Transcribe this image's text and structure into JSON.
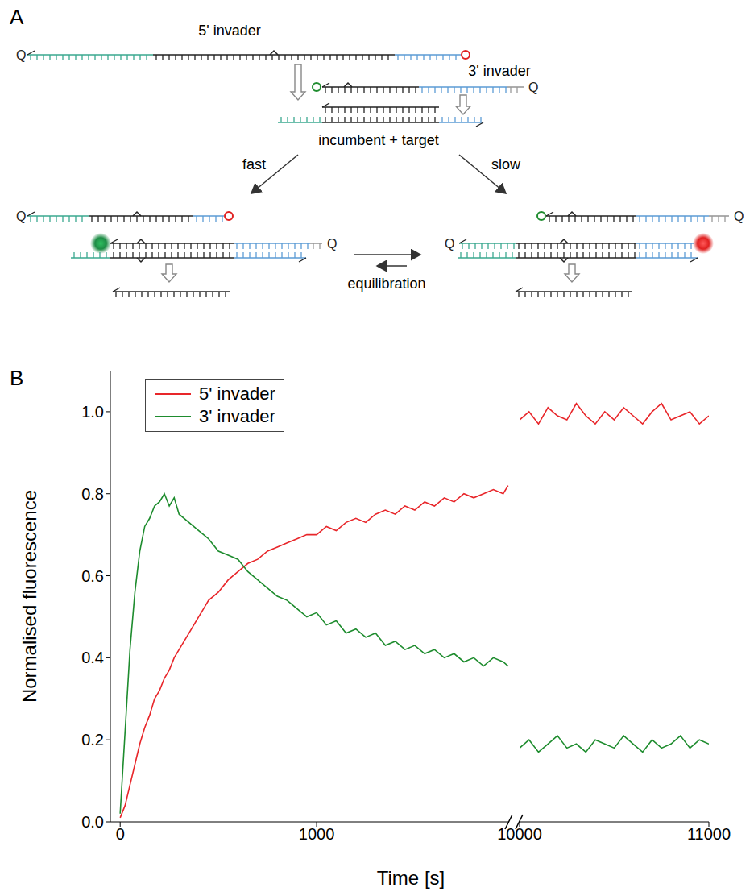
{
  "panel_a": {
    "label": "A",
    "quencher": "Q",
    "invader_5": "5' invader",
    "invader_3": "3' invader",
    "complex": "incumbent + target",
    "fast": "fast",
    "slow": "slow",
    "equilibration": "equilibration"
  },
  "panel_b": {
    "label": "B"
  },
  "chart_data": [
    {
      "type": "line",
      "x_label": "Time [s]",
      "y_label": "Normalised fluorescence",
      "legend": "upper left",
      "xlim": [
        -50,
        1980
      ],
      "xticks": [
        0,
        1000
      ],
      "ylim": [
        0,
        1.1
      ],
      "yticks": [
        {
          "value": 0,
          "label": "0.0"
        },
        0.2,
        0.4,
        0.6,
        0.8,
        {
          "value": 1,
          "label": "1.0"
        }
      ],
      "x": [
        0,
        25,
        50,
        75,
        100,
        125,
        150,
        175,
        200,
        225,
        250,
        275,
        300,
        350,
        400,
        450,
        500,
        550,
        600,
        650,
        700,
        750,
        800,
        850,
        900,
        950,
        1000,
        1050,
        1100,
        1150,
        1200,
        1250,
        1300,
        1350,
        1400,
        1450,
        1500,
        1550,
        1600,
        1650,
        1700,
        1750,
        1800,
        1850,
        1900,
        1950,
        1975
      ],
      "series": [
        {
          "name": "5' invader",
          "color": "#e8262a",
          "values": [
            0.01,
            0.04,
            0.09,
            0.14,
            0.19,
            0.23,
            0.26,
            0.3,
            0.32,
            0.35,
            0.37,
            0.4,
            0.42,
            0.46,
            0.5,
            0.54,
            0.56,
            0.59,
            0.61,
            0.63,
            0.64,
            0.66,
            0.67,
            0.68,
            0.69,
            0.7,
            0.7,
            0.72,
            0.71,
            0.73,
            0.74,
            0.73,
            0.75,
            0.76,
            0.75,
            0.77,
            0.76,
            0.78,
            0.77,
            0.79,
            0.78,
            0.8,
            0.79,
            0.8,
            0.81,
            0.8,
            0.82
          ]
        },
        {
          "name": "3' invader",
          "color": "#1e8c2e",
          "values": [
            0.02,
            0.22,
            0.42,
            0.56,
            0.66,
            0.72,
            0.74,
            0.77,
            0.78,
            0.8,
            0.77,
            0.79,
            0.75,
            0.73,
            0.71,
            0.69,
            0.66,
            0.65,
            0.64,
            0.61,
            0.59,
            0.57,
            0.55,
            0.54,
            0.52,
            0.5,
            0.51,
            0.48,
            0.49,
            0.46,
            0.47,
            0.45,
            0.46,
            0.43,
            0.44,
            0.42,
            0.43,
            0.41,
            0.42,
            0.4,
            0.41,
            0.39,
            0.4,
            0.38,
            0.4,
            0.39,
            0.38
          ]
        }
      ]
    },
    {
      "type": "line",
      "xlim": [
        10000,
        11000
      ],
      "xticks": [
        10000,
        11000
      ],
      "x": [
        10000,
        10050,
        10100,
        10150,
        10200,
        10250,
        10300,
        10350,
        10400,
        10450,
        10500,
        10550,
        10600,
        10650,
        10700,
        10750,
        10800,
        10850,
        10900,
        10950,
        11000
      ],
      "series": [
        {
          "name": "5' invader",
          "color": "#e8262a",
          "values": [
            0.98,
            1.0,
            0.97,
            1.01,
            0.99,
            0.98,
            1.02,
            0.99,
            0.97,
            1.0,
            0.98,
            1.01,
            0.99,
            0.97,
            1.0,
            1.02,
            0.98,
            0.99,
            1.0,
            0.97,
            0.99
          ]
        },
        {
          "name": "3' invader",
          "color": "#1e8c2e",
          "values": [
            0.18,
            0.2,
            0.17,
            0.19,
            0.21,
            0.18,
            0.19,
            0.17,
            0.2,
            0.19,
            0.18,
            0.21,
            0.19,
            0.17,
            0.2,
            0.18,
            0.19,
            0.21,
            0.18,
            0.2,
            0.19
          ]
        }
      ]
    }
  ]
}
